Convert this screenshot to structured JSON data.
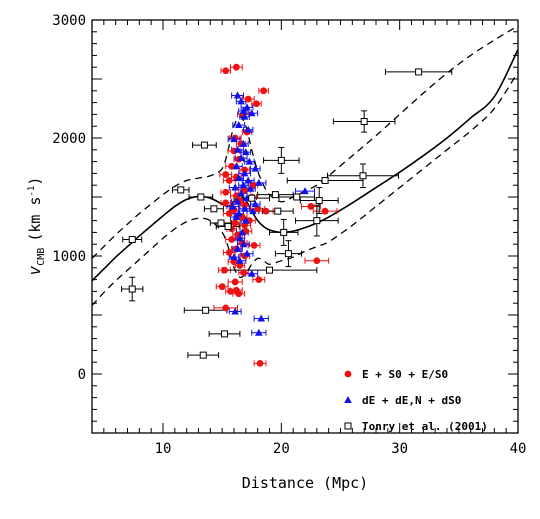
{
  "chart_data": {
    "type": "scatter",
    "xlabel": "Distance (Mpc)",
    "ylabel": "v",
    "ylabel_sub": "CMB",
    "ylabel_units": "(km s",
    "ylabel_units_sup": "-1",
    "ylabel_units_close": ")",
    "xlim": [
      4,
      40
    ],
    "ylim": [
      -500,
      3000
    ],
    "xticks": [
      10,
      20,
      30,
      40
    ],
    "yticks": [
      0,
      1000,
      2000,
      3000
    ],
    "grid": false,
    "legend_position": "bottom-right",
    "series": [
      {
        "name": "E + S0 + E/S0",
        "color": "#ee1111",
        "marker": "filled-circle",
        "points": [
          [
            15.3,
            2570,
            0.4
          ],
          [
            16.2,
            2600,
            0.5
          ],
          [
            18.5,
            2400,
            0.4
          ],
          [
            17.2,
            2330,
            0.5
          ],
          [
            17.9,
            2290,
            0.4
          ],
          [
            16.8,
            2200,
            0.5
          ],
          [
            17.1,
            2050,
            0.4
          ],
          [
            16.1,
            2000,
            0.5
          ],
          [
            16.6,
            1950,
            0.4
          ],
          [
            16.0,
            1890,
            0.5
          ],
          [
            16.4,
            1820,
            0.4
          ],
          [
            15.8,
            1760,
            0.5
          ],
          [
            16.9,
            1730,
            0.4
          ],
          [
            15.3,
            1690,
            0.5
          ],
          [
            16.2,
            1670,
            0.4
          ],
          [
            15.6,
            1640,
            0.5
          ],
          [
            17.6,
            1600,
            0.4
          ],
          [
            16.9,
            1560,
            0.5
          ],
          [
            15.3,
            1540,
            0.4
          ],
          [
            16.2,
            1510,
            0.5
          ],
          [
            17.5,
            1500,
            0.4
          ],
          [
            16.5,
            1470,
            0.5
          ],
          [
            15.3,
            1450,
            0.4
          ],
          [
            16.9,
            1430,
            0.5
          ],
          [
            18.0,
            1400,
            0.6
          ],
          [
            16.0,
            1390,
            0.4
          ],
          [
            18.7,
            1380,
            0.6
          ],
          [
            22.5,
            1420,
            0.8
          ],
          [
            23.7,
            1380,
            1.0
          ],
          [
            15.6,
            1360,
            0.5
          ],
          [
            16.7,
            1330,
            0.4
          ],
          [
            17.3,
            1300,
            0.5
          ],
          [
            16.1,
            1280,
            0.4
          ],
          [
            16.9,
            1260,
            0.5
          ],
          [
            15.8,
            1230,
            0.4
          ],
          [
            17.0,
            1210,
            0.5
          ],
          [
            16.3,
            1180,
            0.4
          ],
          [
            15.8,
            1140,
            0.5
          ],
          [
            16.7,
            1110,
            0.4
          ],
          [
            17.7,
            1090,
            0.5
          ],
          [
            16.2,
            1060,
            0.4
          ],
          [
            15.6,
            1030,
            0.5
          ],
          [
            16.9,
            1000,
            0.4
          ],
          [
            23.0,
            960,
            1.0
          ],
          [
            16.0,
            950,
            0.5
          ],
          [
            16.5,
            920,
            0.4
          ],
          [
            15.2,
            880,
            0.5
          ],
          [
            16.8,
            860,
            0.4
          ],
          [
            18.1,
            800,
            0.5
          ],
          [
            16.1,
            780,
            0.6
          ],
          [
            15.0,
            740,
            0.5
          ],
          [
            16.2,
            710,
            0.5
          ],
          [
            15.7,
            700,
            0.4
          ],
          [
            16.4,
            680,
            0.5
          ],
          [
            15.3,
            560,
            1.0
          ],
          [
            18.2,
            90,
            0.5
          ]
        ]
      },
      {
        "name": "dE + dE,N + dS0",
        "color": "#1111ee",
        "marker": "filled-triangle",
        "points": [
          [
            16.3,
            2360,
            0.5
          ],
          [
            16.6,
            2310,
            0.4
          ],
          [
            17.1,
            2260,
            0.5
          ],
          [
            16.8,
            2230,
            0.4
          ],
          [
            17.5,
            2210,
            0.5
          ],
          [
            16.9,
            2180,
            0.4
          ],
          [
            16.4,
            2110,
            0.5
          ],
          [
            17.2,
            2070,
            0.4
          ],
          [
            16.0,
            1990,
            0.5
          ],
          [
            16.8,
            1950,
            0.4
          ],
          [
            16.3,
            1900,
            0.5
          ],
          [
            17.0,
            1880,
            0.4
          ],
          [
            16.6,
            1830,
            0.5
          ],
          [
            17.3,
            1800,
            0.4
          ],
          [
            16.2,
            1760,
            0.5
          ],
          [
            17.8,
            1740,
            0.4
          ],
          [
            16.9,
            1700,
            0.5
          ],
          [
            16.4,
            1660,
            0.4
          ],
          [
            17.2,
            1640,
            0.5
          ],
          [
            18.1,
            1620,
            0.6
          ],
          [
            16.8,
            1600,
            0.4
          ],
          [
            16.1,
            1580,
            0.5
          ],
          [
            17.4,
            1570,
            0.4
          ],
          [
            16.6,
            1530,
            0.5
          ],
          [
            17.1,
            1490,
            0.4
          ],
          [
            16.3,
            1460,
            0.5
          ],
          [
            17.8,
            1440,
            0.4
          ],
          [
            15.9,
            1420,
            0.5
          ],
          [
            16.9,
            1400,
            0.4
          ],
          [
            17.6,
            1380,
            0.5
          ],
          [
            16.4,
            1360,
            0.4
          ],
          [
            22.0,
            1550,
            0.8
          ],
          [
            16.2,
            1330,
            0.5
          ],
          [
            17.0,
            1300,
            0.4
          ],
          [
            16.7,
            1200,
            0.5
          ],
          [
            16.5,
            1150,
            0.4
          ],
          [
            16.8,
            1100,
            0.5
          ],
          [
            16.3,
            1060,
            0.4
          ],
          [
            17.1,
            1020,
            0.5
          ],
          [
            16.0,
            990,
            0.4
          ],
          [
            16.5,
            960,
            0.5
          ],
          [
            17.5,
            850,
            0.5
          ],
          [
            16.1,
            530,
            0.5
          ],
          [
            18.3,
            470,
            0.6
          ],
          [
            18.1,
            350,
            0.6
          ]
        ]
      },
      {
        "name": "Tonry et al. (2001)",
        "color": "#000000",
        "marker": "open-square",
        "points": [
          [
            31.6,
            2560,
            2.8,
            0
          ],
          [
            27.0,
            2140,
            2.6,
            90
          ],
          [
            13.5,
            1940,
            1.0,
            0
          ],
          [
            20.0,
            1810,
            1.5,
            110
          ],
          [
            26.9,
            1680,
            3.0,
            100
          ],
          [
            23.7,
            1640,
            3.2,
            0
          ],
          [
            11.5,
            1560,
            0.7,
            0
          ],
          [
            13.2,
            1500,
            1.0,
            0
          ],
          [
            21.3,
            1500,
            1.5,
            0
          ],
          [
            19.5,
            1520,
            1.5,
            0
          ],
          [
            17.5,
            1490,
            1.5,
            0
          ],
          [
            23.2,
            1470,
            1.6,
            110
          ],
          [
            19.7,
            1380,
            1.3,
            0
          ],
          [
            14.3,
            1400,
            0.8,
            0
          ],
          [
            20.2,
            1200,
            1.2,
            110
          ],
          [
            23.0,
            1300,
            1.8,
            130
          ],
          [
            14.9,
            1280,
            0.9,
            0
          ],
          [
            15.5,
            1250,
            1.0,
            0
          ],
          [
            7.4,
            1140,
            0.8,
            0
          ],
          [
            20.6,
            1020,
            1.1,
            110
          ],
          [
            19.0,
            880,
            4.0,
            0
          ],
          [
            7.4,
            720,
            0.9,
            100
          ],
          [
            13.6,
            540,
            1.8,
            0
          ],
          [
            15.2,
            340,
            1.3,
            0
          ],
          [
            13.4,
            160,
            1.3,
            0
          ]
        ]
      }
    ],
    "model": {
      "solid": [
        [
          4,
          790
        ],
        [
          5,
          890
        ],
        [
          6,
          990
        ],
        [
          7,
          1080
        ],
        [
          8,
          1170
        ],
        [
          9,
          1255
        ],
        [
          10,
          1340
        ],
        [
          11,
          1420
        ],
        [
          12,
          1480
        ],
        [
          13,
          1505
        ],
        [
          14,
          1490
        ],
        [
          15,
          1440
        ],
        [
          15.5,
          1420
        ],
        [
          16,
          1460
        ],
        [
          16.5,
          1510
        ],
        [
          17,
          1470
        ],
        [
          17.5,
          1380
        ],
        [
          18,
          1300
        ],
        [
          18.5,
          1250
        ],
        [
          19,
          1220
        ],
        [
          20,
          1200
        ],
        [
          21,
          1210
        ],
        [
          22,
          1240
        ],
        [
          23,
          1280
        ],
        [
          24,
          1330
        ],
        [
          26,
          1450
        ],
        [
          28,
          1580
        ],
        [
          30,
          1710
        ],
        [
          32,
          1850
        ],
        [
          34,
          2000
        ],
        [
          36,
          2170
        ],
        [
          38,
          2350
        ],
        [
          40,
          2750
        ]
      ],
      "dashed_upper": [
        [
          4,
          980
        ],
        [
          5,
          1080
        ],
        [
          6,
          1180
        ],
        [
          7,
          1270
        ],
        [
          8,
          1360
        ],
        [
          9,
          1440
        ],
        [
          10,
          1520
        ],
        [
          11,
          1590
        ],
        [
          12,
          1640
        ],
        [
          13,
          1660
        ],
        [
          14,
          1680
        ],
        [
          15,
          1740
        ],
        [
          15.5,
          1900
        ],
        [
          16,
          2100
        ],
        [
          16.5,
          2180
        ],
        [
          17,
          2100
        ],
        [
          17.5,
          1900
        ],
        [
          18,
          1720
        ],
        [
          18.5,
          1600
        ],
        [
          19,
          1520
        ],
        [
          20,
          1460
        ],
        [
          21,
          1500
        ],
        [
          22,
          1550
        ],
        [
          23,
          1600
        ],
        [
          24,
          1680
        ],
        [
          26,
          1850
        ],
        [
          28,
          2020
        ],
        [
          30,
          2200
        ],
        [
          32,
          2380
        ],
        [
          34,
          2550
        ],
        [
          36,
          2700
        ],
        [
          38,
          2830
        ],
        [
          40,
          2950
        ]
      ],
      "dashed_lower": [
        [
          4,
          580
        ],
        [
          5,
          690
        ],
        [
          6,
          790
        ],
        [
          7,
          880
        ],
        [
          8,
          970
        ],
        [
          9,
          1060
        ],
        [
          10,
          1150
        ],
        [
          11,
          1230
        ],
        [
          12,
          1290
        ],
        [
          13,
          1320
        ],
        [
          14,
          1300
        ],
        [
          15,
          1200
        ],
        [
          15.5,
          1080
        ],
        [
          16,
          900
        ],
        [
          16.5,
          820
        ],
        [
          17,
          850
        ],
        [
          17.5,
          930
        ],
        [
          18,
          980
        ],
        [
          18.5,
          960
        ],
        [
          19,
          930
        ],
        [
          20,
          960
        ],
        [
          21,
          990
        ],
        [
          22,
          1040
        ],
        [
          23,
          1080
        ],
        [
          24,
          1120
        ],
        [
          26,
          1260
        ],
        [
          28,
          1420
        ],
        [
          30,
          1580
        ],
        [
          32,
          1740
        ],
        [
          34,
          1900
        ],
        [
          36,
          2060
        ],
        [
          38,
          2250
        ],
        [
          40,
          2560
        ]
      ]
    }
  }
}
